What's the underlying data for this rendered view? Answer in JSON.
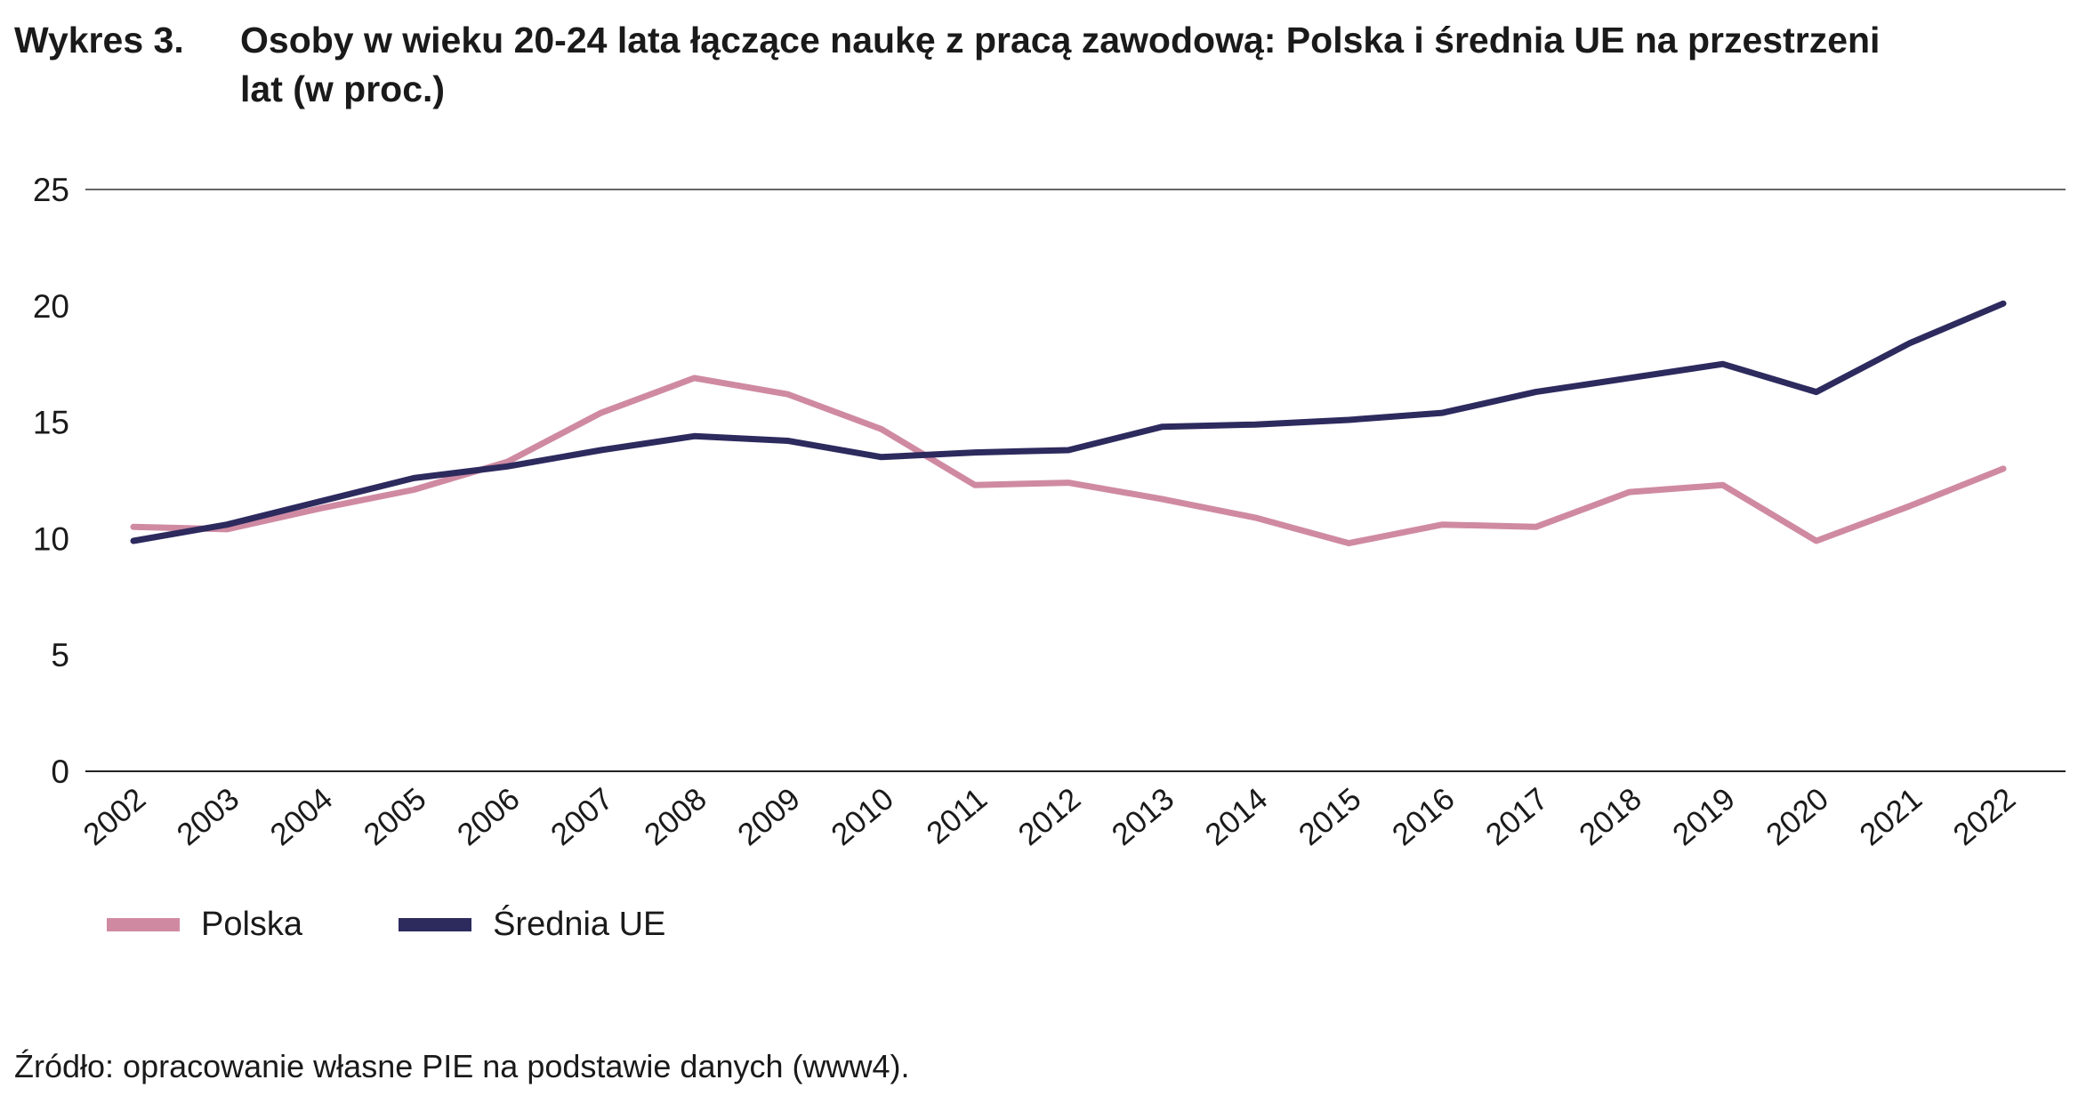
{
  "title": {
    "label": "Wykres 3.",
    "text": "Osoby w wieku 20-24 lata łączące naukę z pracą zawodową: Polska i średnia UE na przestrzeni lat (w proc.)"
  },
  "source": "Źródło: opracowanie własne PIE na podstawie danych (www4).",
  "chart_data": {
    "type": "line",
    "title": "Osoby w wieku 20-24 lata łączące naukę z pracą zawodową: Polska i średnia UE na przestrzeni lat (w proc.)",
    "xlabel": "",
    "ylabel": "",
    "ylim": [
      0,
      25
    ],
    "yticks": [
      0,
      5,
      10,
      15,
      20,
      25
    ],
    "grid": "top line only",
    "legend": "bottom-left",
    "categories": [
      "2002",
      "2003",
      "2004",
      "2005",
      "2006",
      "2007",
      "2008",
      "2009",
      "2010",
      "2011",
      "2012",
      "2013",
      "2014",
      "2015",
      "2016",
      "2017",
      "2018",
      "2019",
      "2020",
      "2021",
      "2022"
    ],
    "series": [
      {
        "name": "Polska",
        "color": "#cf8aa2",
        "values": [
          10.5,
          10.4,
          11.3,
          12.1,
          13.3,
          15.4,
          16.9,
          16.2,
          14.7,
          12.3,
          12.4,
          11.7,
          10.9,
          9.8,
          10.6,
          10.5,
          12.0,
          12.3,
          9.9,
          11.4,
          13.0
        ]
      },
      {
        "name": "Średnia UE",
        "color": "#2d2a5e",
        "values": [
          9.9,
          10.6,
          11.6,
          12.6,
          13.1,
          13.8,
          14.4,
          14.2,
          13.5,
          13.7,
          13.8,
          14.8,
          14.9,
          15.1,
          15.4,
          16.3,
          16.9,
          17.5,
          16.3,
          18.4,
          20.1
        ]
      }
    ]
  }
}
